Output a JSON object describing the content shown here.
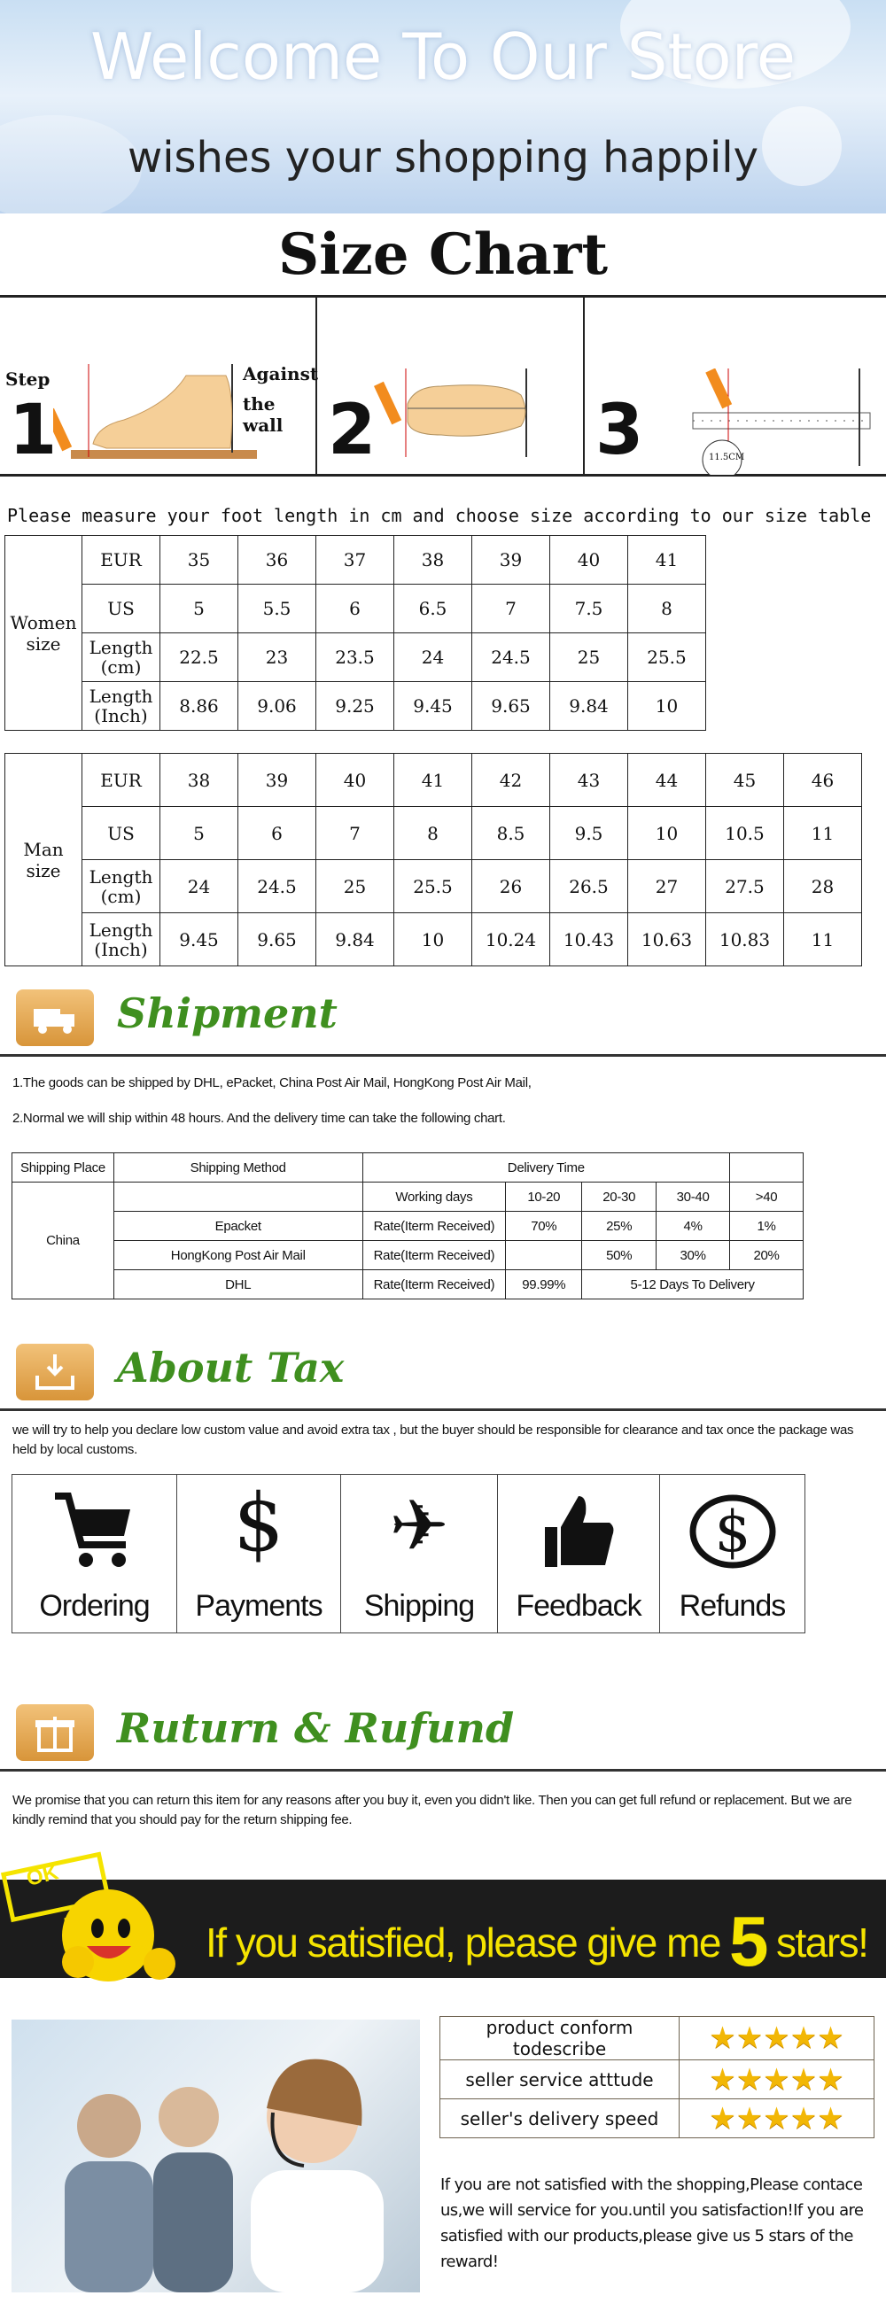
{
  "banner": {
    "welcome": "Welcome To Our Store",
    "wishes": "wishes your shopping happily"
  },
  "size_chart": {
    "title": "Size Chart",
    "steps": {
      "step_label": "Step",
      "against": "Against",
      "the_wall": "the wall",
      "n1": "1",
      "n2": "2",
      "n3": "3",
      "ruler_reading": "11.5CM"
    },
    "instruction": "Please measure your foot length in cm and choose size according to our size table",
    "women": {
      "label": "Women size",
      "rows": [
        [
          "EUR",
          "35",
          "36",
          "37",
          "38",
          "39",
          "40",
          "41"
        ],
        [
          "US",
          "5",
          "5.5",
          "6",
          "6.5",
          "7",
          "7.5",
          "8"
        ],
        [
          "Length (cm)",
          "22.5",
          "23",
          "23.5",
          "24",
          "24.5",
          "25",
          "25.5"
        ],
        [
          "Length (Inch)",
          "8.86",
          "9.06",
          "9.25",
          "9.45",
          "9.65",
          "9.84",
          "10"
        ]
      ]
    },
    "man": {
      "label": "Man size",
      "rows": [
        [
          "EUR",
          "38",
          "39",
          "40",
          "41",
          "42",
          "43",
          "44",
          "45",
          "46"
        ],
        [
          "US",
          "5",
          "6",
          "7",
          "8",
          "8.5",
          "9.5",
          "10",
          "10.5",
          "11"
        ],
        [
          "Length (cm)",
          "24",
          "24.5",
          "25",
          "25.5",
          "26",
          "26.5",
          "27",
          "27.5",
          "28"
        ],
        [
          "Length (Inch)",
          "9.45",
          "9.65",
          "9.84",
          "10",
          "10.24",
          "10.43",
          "10.63",
          "10.83",
          "11"
        ]
      ]
    }
  },
  "shipment": {
    "title": "Shipment",
    "line1": "1.The goods can be shipped by DHL, ePacket, China Post Air Mail, HongKong Post Air Mail,",
    "line2": "2.Normal we will ship within 48 hours. And the delivery time can take the following chart.",
    "table": {
      "h_place": "Shipping Place",
      "h_method": "Shipping Method",
      "h_delivery": "Delivery Time",
      "place": "China",
      "working_days": "Working days",
      "ranges": [
        "10-20",
        "20-30",
        "30-40",
        ">40"
      ],
      "rate_label": "Rate(Iterm Received)",
      "epacket": {
        "name": "Epacket",
        "values": [
          "70%",
          "25%",
          "4%",
          "1%"
        ]
      },
      "hongkong": {
        "name": "HongKong Post Air Mail",
        "values": [
          "",
          "50%",
          "30%",
          "20%"
        ]
      },
      "dhl": {
        "name": "DHL",
        "value": "99.99%",
        "note": "5-12 Days To Delivery"
      }
    }
  },
  "tax": {
    "title": "About Tax",
    "text": "we will try to help you declare low custom value and avoid extra tax , but the buyer should be responsible for clearance and tax once the package was held by local customs.",
    "icons": [
      {
        "icon": "cart-icon",
        "label": "Ordering"
      },
      {
        "icon": "dollar-icon",
        "label": "Payments"
      },
      {
        "icon": "airplane-icon",
        "label": "Shipping"
      },
      {
        "icon": "thumbs-up-icon",
        "label": "Feedback"
      },
      {
        "icon": "refund-icon",
        "label": "Refunds"
      }
    ]
  },
  "return": {
    "title": "Ruturn & Rufund",
    "text": "We promise that you can return this item for any reasons after you buy it, even you didn't like. Then you can get full refund or replacement. But we are kindly remind that you should pay for the return shipping fee."
  },
  "promo": {
    "sign": "OK",
    "text_before": "If you satisfied, please give me",
    "five": "5",
    "text_after": "stars!",
    "color": "#f5e400"
  },
  "ratings": {
    "rows": [
      {
        "label": "product conform todescribe",
        "stars": 5
      },
      {
        "label": "seller service atttude",
        "stars": 5
      },
      {
        "label": "seller's delivery speed",
        "stars": 5
      }
    ]
  },
  "satisfy_text": "If you are not satisfied with the shopping,Please contace us,we will service for you.until you satisfaction!If you are satisfied with our products,please give us 5 stars of the reward!"
}
